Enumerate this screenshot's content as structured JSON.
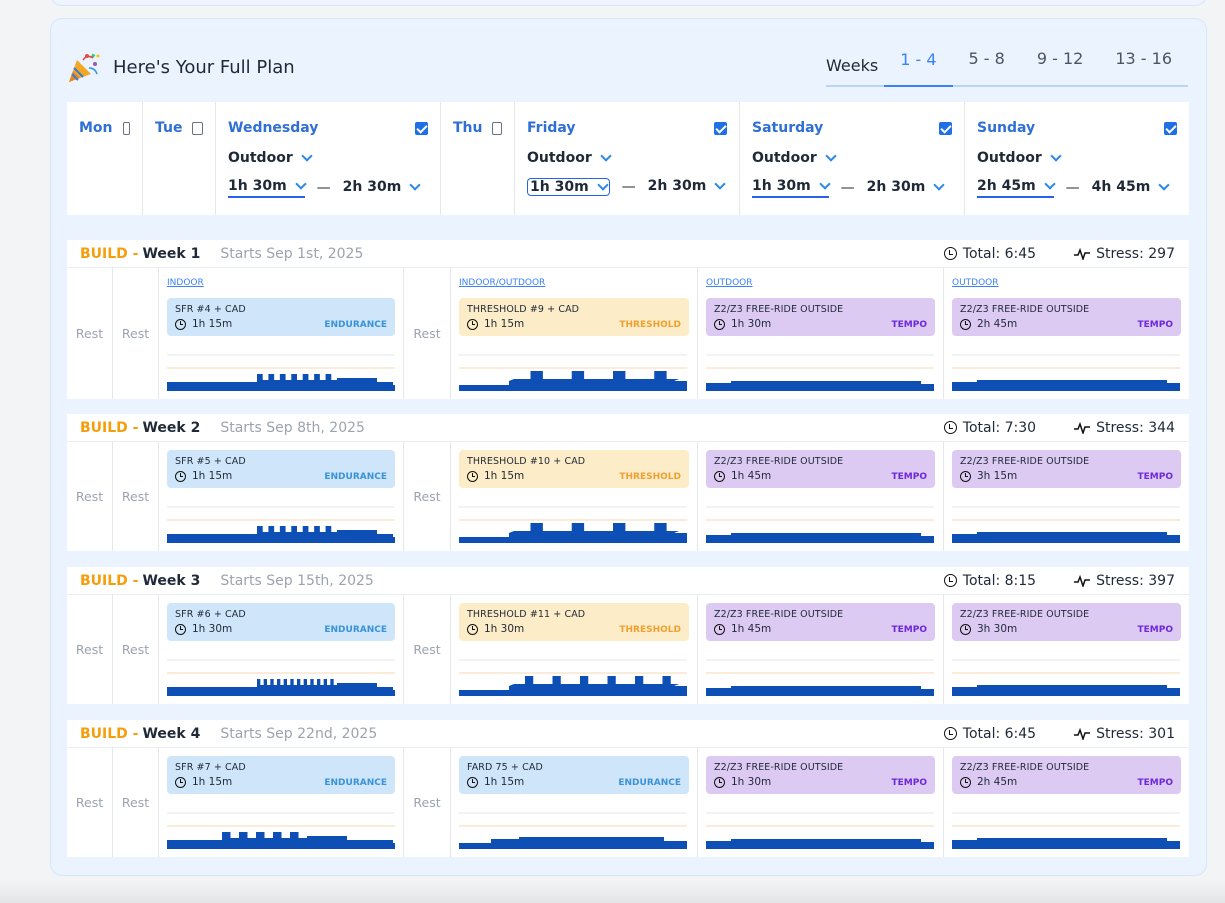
{
  "header": {
    "title": "Here's Your Full Plan",
    "weeks_label": "Weeks"
  },
  "week_tabs": [
    "1 - 4",
    "5 - 8",
    "9 - 12",
    "13 - 16"
  ],
  "week_tabs_active": "1 - 4",
  "days": {
    "mon": {
      "label": "Mon",
      "checked": false
    },
    "tue": {
      "label": "Tue",
      "checked": false
    },
    "wed": {
      "label": "Wednesday",
      "checked": true,
      "type": "Outdoor",
      "min": "1h 30m",
      "max": "2h 30m"
    },
    "thu": {
      "label": "Thu",
      "checked": false
    },
    "fri": {
      "label": "Friday",
      "checked": true,
      "type": "Outdoor",
      "min": "1h 30m",
      "max": "2h 30m"
    },
    "sat": {
      "label": "Saturday",
      "checked": true,
      "type": "Outdoor",
      "min": "1h 30m",
      "max": "2h 30m"
    },
    "sun": {
      "label": "Sunday",
      "checked": true,
      "type": "Outdoor",
      "min": "2h 45m",
      "max": "4h 45m"
    }
  },
  "separator": "—",
  "rest_label": "Rest",
  "weeks": [
    {
      "phase": "BUILD -",
      "week": "Week 1",
      "starts": "Starts Sep 1st, 2025",
      "total": "Total: 6:45",
      "stress": "Stress: 297",
      "wed": {
        "env": "INDOOR",
        "name": "SFR #4 + CAD",
        "dur": "1h 15m",
        "tag": "ENDURANCE"
      },
      "fri": {
        "env": "INDOOR/OUTDOOR",
        "name": "THRESHOLD #9 + CAD",
        "dur": "1h 15m",
        "tag": "THRESHOLD"
      },
      "sat": {
        "env": "OUTDOOR",
        "name": "Z2/Z3 FREE-RIDE OUTSIDE",
        "dur": "1h 30m",
        "tag": "TEMPO"
      },
      "sun": {
        "env": "OUTDOOR",
        "name": "Z2/Z3 FREE-RIDE OUTSIDE",
        "dur": "2h 45m",
        "tag": "TEMPO"
      }
    },
    {
      "phase": "BUILD -",
      "week": "Week 2",
      "starts": "Starts Sep 8th, 2025",
      "total": "Total: 7:30",
      "stress": "Stress: 344",
      "wed": {
        "env": "",
        "name": "SFR #5 + CAD",
        "dur": "1h 15m",
        "tag": "ENDURANCE"
      },
      "fri": {
        "env": "",
        "name": "THRESHOLD #10 + CAD",
        "dur": "1h 15m",
        "tag": "THRESHOLD"
      },
      "sat": {
        "env": "",
        "name": "Z2/Z3 FREE-RIDE OUTSIDE",
        "dur": "1h 45m",
        "tag": "TEMPO"
      },
      "sun": {
        "env": "",
        "name": "Z2/Z3 FREE-RIDE OUTSIDE",
        "dur": "3h 15m",
        "tag": "TEMPO"
      }
    },
    {
      "phase": "BUILD -",
      "week": "Week 3",
      "starts": "Starts Sep 15th, 2025",
      "total": "Total: 8:15",
      "stress": "Stress: 397",
      "wed": {
        "env": "",
        "name": "SFR #6 + CAD",
        "dur": "1h 30m",
        "tag": "ENDURANCE"
      },
      "fri": {
        "env": "",
        "name": "THRESHOLD #11 + CAD",
        "dur": "1h 30m",
        "tag": "THRESHOLD"
      },
      "sat": {
        "env": "",
        "name": "Z2/Z3 FREE-RIDE OUTSIDE",
        "dur": "1h 45m",
        "tag": "TEMPO"
      },
      "sun": {
        "env": "",
        "name": "Z2/Z3 FREE-RIDE OUTSIDE",
        "dur": "3h 30m",
        "tag": "TEMPO"
      }
    },
    {
      "phase": "BUILD -",
      "week": "Week 4",
      "starts": "Starts Sep 22nd, 2025",
      "total": "Total: 6:45",
      "stress": "Stress: 301",
      "wed": {
        "env": "",
        "name": "SFR #7 + CAD",
        "dur": "1h 15m",
        "tag": "ENDURANCE"
      },
      "fri": {
        "env": "",
        "name": "FARD 75 + CAD",
        "dur": "1h 15m",
        "tag": "ENDURANCE"
      },
      "sat": {
        "env": "",
        "name": "Z2/Z3 FREE-RIDE OUTSIDE",
        "dur": "1h 30m",
        "tag": "TEMPO"
      },
      "sun": {
        "env": "",
        "name": "Z2/Z3 FREE-RIDE OUTSIDE",
        "dur": "2h 45m",
        "tag": "TEMPO"
      }
    }
  ],
  "colors": {
    "accent": "#3b82f6",
    "profile": "#0d4fb5",
    "phase": "#f59e0b",
    "endurance": "#cfe6fa",
    "threshold": "#fdecc8",
    "tempo": "#ddcaf3"
  }
}
